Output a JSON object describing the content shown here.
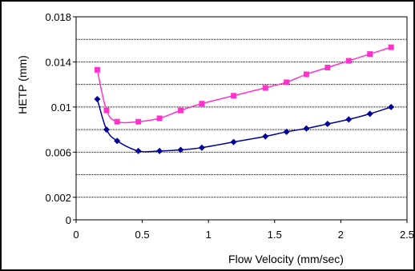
{
  "chart_data": {
    "type": "line",
    "xlabel": "Flow Velocity (mm/sec)",
    "ylabel": "HETP (mm)",
    "xlim": [
      0,
      2.5
    ],
    "ylim": [
      0,
      0.018
    ],
    "x_ticks": [
      "0",
      "0.5",
      "1",
      "1.5",
      "2",
      "2.5"
    ],
    "y_ticks": [
      "0",
      "0.002",
      "0.006",
      "0.01",
      "0.014",
      "0.018"
    ],
    "y_grid": [
      0.002,
      0.004,
      0.006,
      0.008,
      0.01,
      0.012,
      0.014,
      0.016,
      0.018
    ],
    "series": [
      {
        "color": "#ff33cc",
        "marker": "square",
        "points": [
          [
            0.16,
            0.0133
          ],
          [
            0.23,
            0.0097
          ],
          [
            0.31,
            0.0087
          ],
          [
            0.47,
            0.0087
          ],
          [
            0.63,
            0.009
          ],
          [
            0.79,
            0.0097
          ],
          [
            0.95,
            0.0103
          ],
          [
            1.19,
            0.011
          ],
          [
            1.43,
            0.0117
          ],
          [
            1.59,
            0.0122
          ],
          [
            1.74,
            0.0129
          ],
          [
            1.9,
            0.0135
          ],
          [
            2.06,
            0.0141
          ],
          [
            2.22,
            0.0147
          ],
          [
            2.38,
            0.0153
          ]
        ]
      },
      {
        "color": "#000099",
        "marker": "diamond",
        "points": [
          [
            0.16,
            0.0107
          ],
          [
            0.23,
            0.008
          ],
          [
            0.31,
            0.007
          ],
          [
            0.47,
            0.0061
          ],
          [
            0.63,
            0.0061
          ],
          [
            0.79,
            0.0062
          ],
          [
            0.95,
            0.0064
          ],
          [
            1.19,
            0.0069
          ],
          [
            1.43,
            0.0074
          ],
          [
            1.59,
            0.0078
          ],
          [
            1.74,
            0.0081
          ],
          [
            1.9,
            0.0085
          ],
          [
            2.06,
            0.0089
          ],
          [
            2.22,
            0.0094
          ],
          [
            2.38,
            0.01
          ]
        ]
      }
    ]
  }
}
